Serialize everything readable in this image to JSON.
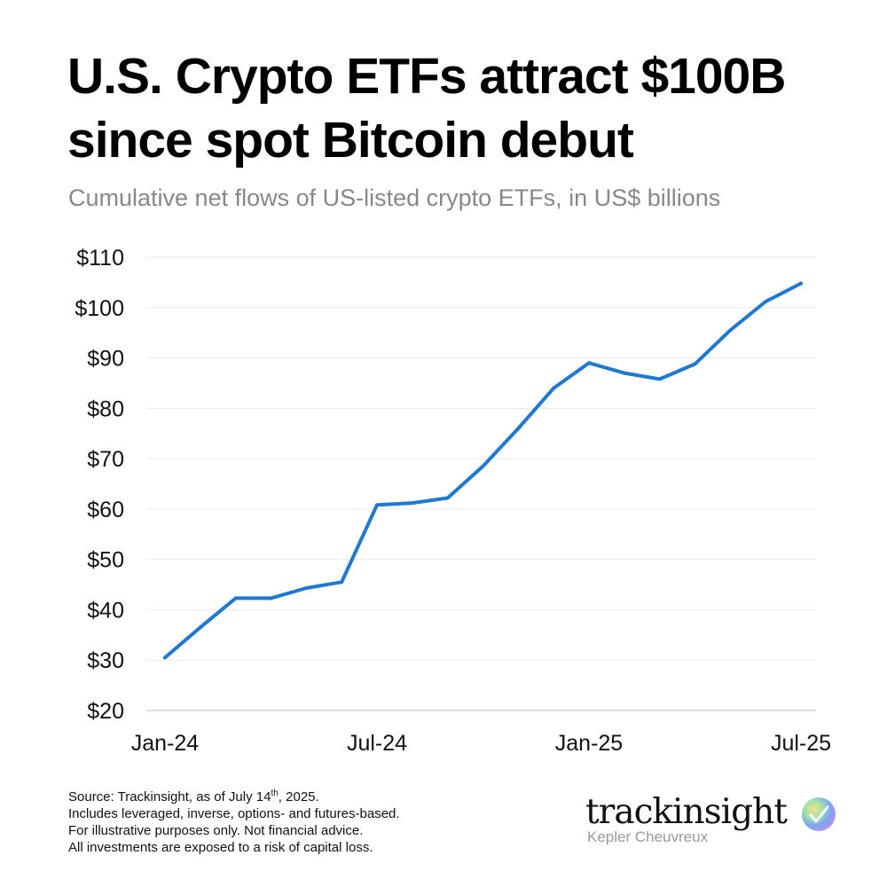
{
  "header": {
    "title_line1": "U.S. Crypto ETFs attract $100B",
    "title_line2": "since spot Bitcoin debut",
    "subtitle": "Cumulative net flows of US-listed crypto ETFs, in US$ billions"
  },
  "chart_data": {
    "type": "line",
    "title": "U.S. Crypto ETFs attract $100B since spot Bitcoin debut",
    "subtitle": "Cumulative net flows of US-listed crypto ETFs, in US$ billions",
    "xlabel": "",
    "ylabel": "",
    "x": [
      "2024-01",
      "2024-02",
      "2024-03",
      "2024-04",
      "2024-05",
      "2024-06",
      "2024-07",
      "2024-08",
      "2024-09",
      "2024-10",
      "2024-11",
      "2024-12",
      "2025-01",
      "2025-02",
      "2025-03",
      "2025-04",
      "2025-05",
      "2025-06",
      "2025-07"
    ],
    "x_tick_labels": [
      {
        "x": "2024-01",
        "label": "Jan-24"
      },
      {
        "x": "2024-07",
        "label": "Jul-24"
      },
      {
        "x": "2025-01",
        "label": "Jan-25"
      },
      {
        "x": "2025-07",
        "label": "Jul-25"
      }
    ],
    "y_ticks": [
      20,
      30,
      40,
      50,
      60,
      70,
      80,
      90,
      100,
      110
    ],
    "y_tick_labels": [
      "$20",
      "$30",
      "$40",
      "$50",
      "$60",
      "$70",
      "$80",
      "$90",
      "$100",
      "$110"
    ],
    "ylim": [
      20,
      110
    ],
    "grid": true,
    "series": [
      {
        "color": "#1f78d1",
        "values": [
          30.5,
          36.5,
          42.3,
          42.3,
          44.3,
          45.5,
          60.8,
          61.2,
          62.2,
          68.5,
          76.0,
          84.0,
          89.0,
          87.0,
          85.8,
          88.8,
          95.5,
          101.2,
          104.8
        ]
      }
    ]
  },
  "footer": {
    "source_prefix": "Source: Trackinsight, as of July 14",
    "source_sup": "th",
    "source_suffix": ", 2025.",
    "line2": "Includes leveraged, inverse, options- and futures-based.",
    "line3": "For illustrative purposes only. Not financial advice.",
    "line4": "All investments are exposed to a risk of capital loss."
  },
  "brand": {
    "name": "trackinsight",
    "sub": "Kepler Cheuvreux",
    "logo_icon": "gradient-orb-check-icon"
  }
}
